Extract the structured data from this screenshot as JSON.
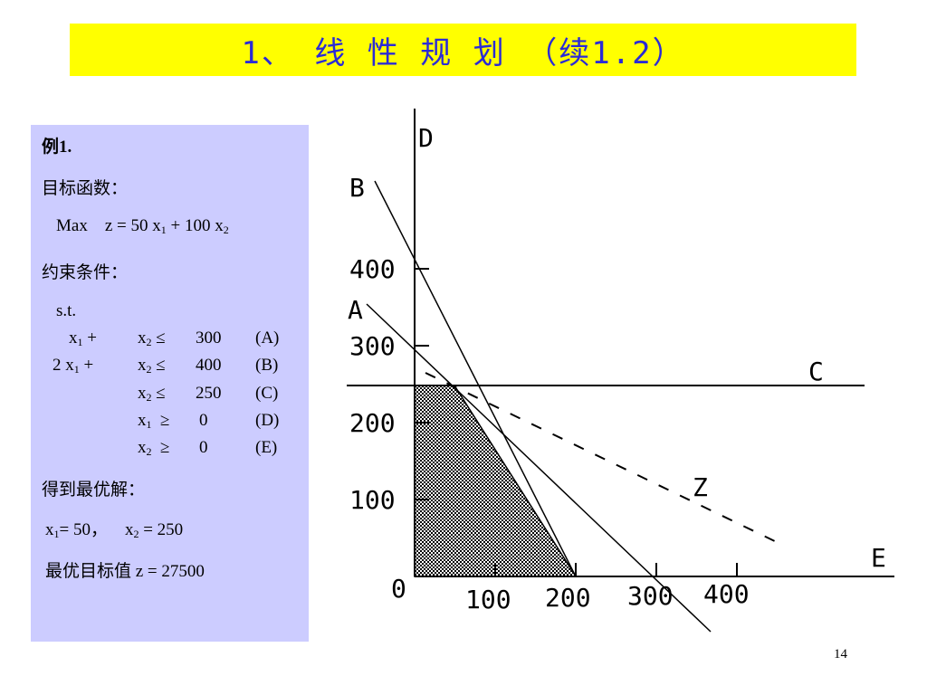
{
  "title": "1、 线 性 规 划 （续1.2）",
  "panel": {
    "example": "例1.",
    "objective_label": "目标函数：",
    "objective_max": "Max",
    "objective_z": "z = 50 x",
    "objective_plus": " + 100 x",
    "constraints_label": "约束条件：",
    "st": "s.t.",
    "constraints": [
      {
        "lhs_coef": "",
        "lhs_var": "x",
        "lhs_sub": "1",
        "plus": " +",
        "rhs_var": "x",
        "rhs_sub": "2",
        "op": "≤",
        "value": "300",
        "tag": "(A)"
      },
      {
        "lhs_coef": "2 ",
        "lhs_var": "x",
        "lhs_sub": "1",
        "plus": " +",
        "rhs_var": "x",
        "rhs_sub": "2",
        "op": "≤",
        "value": "400",
        "tag": "(B)"
      },
      {
        "rhs_var": "x",
        "rhs_sub": "2",
        "op": "≤",
        "value": "250",
        "tag": "(C)"
      },
      {
        "rhs_var": "x",
        "rhs_sub": "1",
        "op": "≥",
        "value": "0",
        "tag": "(D)"
      },
      {
        "rhs_var": "x",
        "rhs_sub": "2",
        "op": "≥",
        "value": "0",
        "tag": "(E)"
      }
    ],
    "solution_label": "得到最优解：",
    "x1_value": "= 50，",
    "x2_value": "=  250",
    "optimal_label": "最优目标值  z  =  27500"
  },
  "graph": {
    "line_labels": {
      "A": "A",
      "B": "B",
      "C": "C",
      "D": "D",
      "E": "E",
      "Z": "Z"
    },
    "x_ticks": [
      "100",
      "200",
      "300",
      "400"
    ],
    "y_ticks": [
      "100",
      "200",
      "300",
      "400"
    ],
    "origin": "0",
    "feasible_vertices": [
      [
        0,
        0
      ],
      [
        0,
        250
      ],
      [
        50,
        250
      ],
      [
        200,
        0
      ]
    ],
    "lines": {
      "A": "x1 + x2 = 300",
      "B": "2x1 + x2 = 400",
      "C": "x2 = 250",
      "D": "x1 = 0",
      "E": "x2 = 0",
      "Z": "50x1 + 100x2 = 27500"
    }
  },
  "page_number": "14"
}
